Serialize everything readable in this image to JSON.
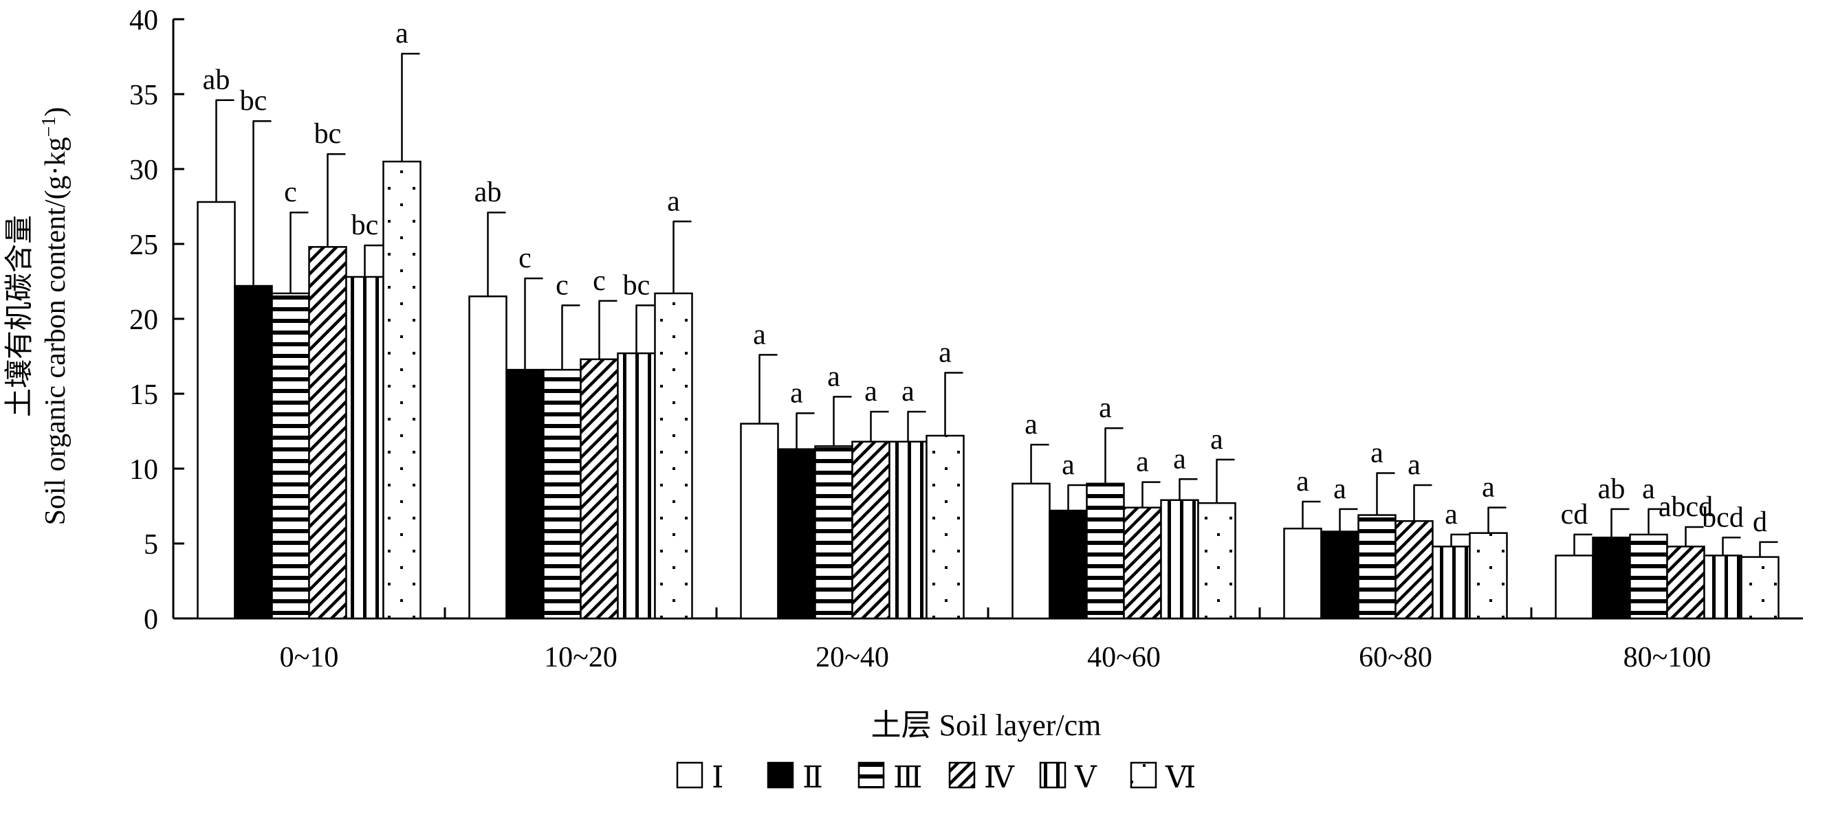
{
  "chart_data": {
    "type": "bar",
    "ylabel_cn": "土壤有机碳含量",
    "ylabel_en": "Soil organic carbon content/(g·kg",
    "ylabel_sup": "−1",
    "ylabel_close": ")",
    "xlabel": "土层 Soil layer/cm",
    "ylim": [
      0,
      40
    ],
    "yticks": [
      0,
      5,
      10,
      15,
      20,
      25,
      30,
      35,
      40
    ],
    "categories": [
      "0~10",
      "10~20",
      "20~40",
      "40~60",
      "60~80",
      "80~100"
    ],
    "legend_position": "bottom",
    "series": [
      {
        "name": "Ⅰ",
        "pattern": "white",
        "values": [
          27.8,
          21.5,
          13.0,
          9.0,
          6.0,
          4.2
        ],
        "errors": [
          6.8,
          5.6,
          4.6,
          2.6,
          1.8,
          1.4
        ],
        "labels": [
          "ab",
          "ab",
          "a",
          "a",
          "a",
          "cd"
        ]
      },
      {
        "name": "Ⅱ",
        "pattern": "black",
        "values": [
          22.2,
          16.6,
          11.3,
          7.2,
          5.8,
          5.4
        ],
        "errors": [
          11.0,
          6.1,
          2.4,
          1.7,
          1.5,
          1.9
        ],
        "labels": [
          "bc",
          "c",
          "a",
          "a",
          "a",
          "ab"
        ]
      },
      {
        "name": "Ⅲ",
        "pattern": "hlines",
        "values": [
          21.7,
          16.6,
          11.5,
          9.0,
          6.9,
          5.6
        ],
        "errors": [
          5.4,
          4.3,
          3.3,
          3.7,
          2.8,
          1.7
        ],
        "labels": [
          "c",
          "c",
          "a",
          "a",
          "a",
          "a"
        ]
      },
      {
        "name": "Ⅳ",
        "pattern": "diagonal",
        "values": [
          24.8,
          17.3,
          11.8,
          7.4,
          6.5,
          4.8
        ],
        "errors": [
          6.2,
          3.9,
          2.0,
          1.7,
          2.4,
          1.3
        ],
        "labels": [
          "bc",
          "c",
          "a",
          "a",
          "a",
          "abcd"
        ]
      },
      {
        "name": "Ⅴ",
        "pattern": "vlines",
        "values": [
          22.8,
          17.7,
          11.8,
          7.9,
          4.8,
          4.2
        ],
        "errors": [
          2.1,
          3.2,
          2.0,
          1.4,
          0.8,
          1.2
        ],
        "labels": [
          "bc",
          "bc",
          "a",
          "a",
          "a",
          "bcd"
        ]
      },
      {
        "name": "Ⅵ",
        "pattern": "dots",
        "values": [
          30.5,
          21.7,
          12.2,
          7.7,
          5.7,
          4.1
        ],
        "errors": [
          7.2,
          4.8,
          4.2,
          2.9,
          1.7,
          1.0
        ],
        "labels": [
          "a",
          "a",
          "a",
          "a",
          "a",
          "d"
        ]
      }
    ]
  }
}
